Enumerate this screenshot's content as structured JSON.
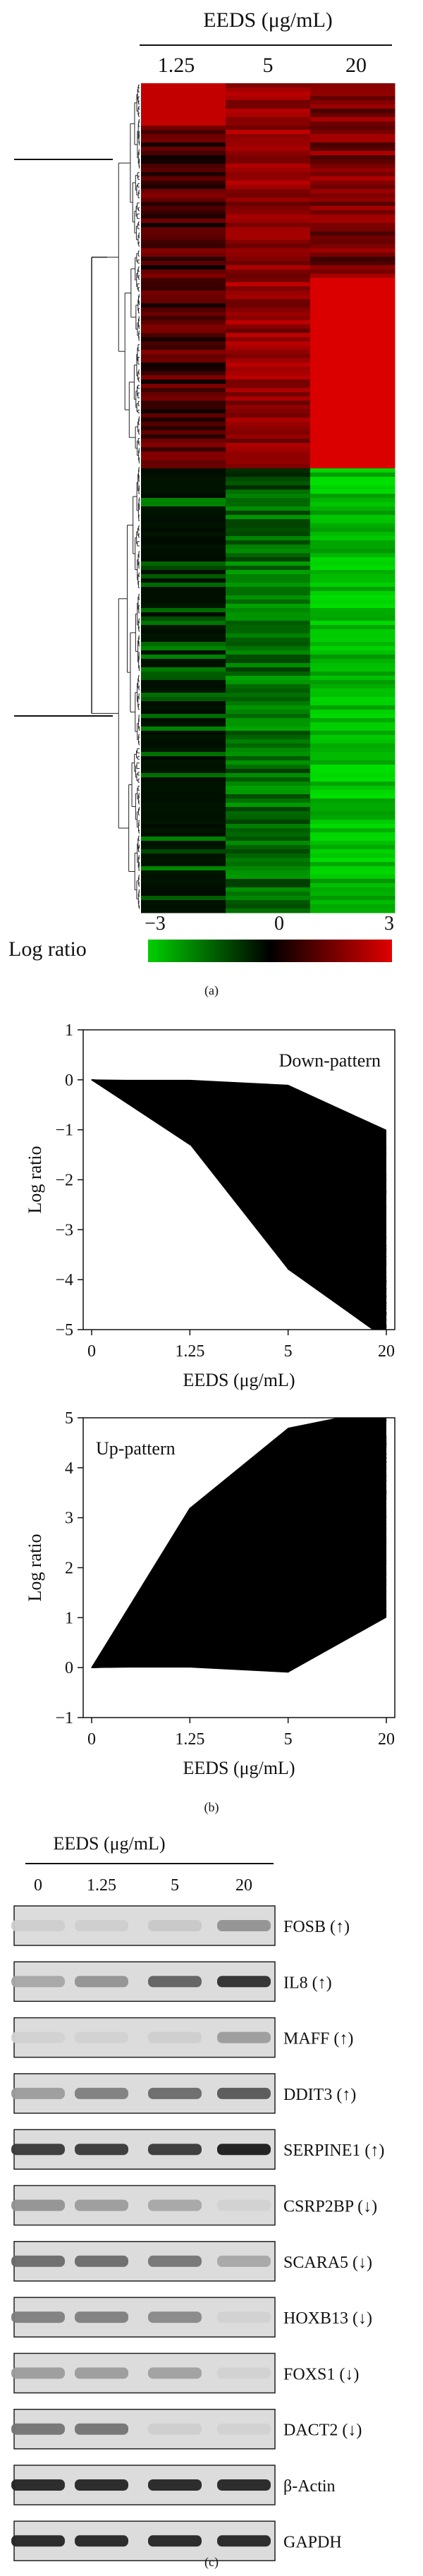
{
  "panel_a": {
    "title": "EEDS (μg/mL)",
    "columns": [
      "1.25",
      "5",
      "20"
    ],
    "scale_label": "Log ratio",
    "scale_ticks": [
      "-3",
      "0",
      "3"
    ],
    "scale_colors": {
      "low": "#00d000",
      "mid": "#000000",
      "high": "#e00000"
    },
    "caption": "(a)"
  },
  "chart_data": [
    {
      "type": "line",
      "title": "",
      "annotation": "Down-pattern",
      "xlabel": "EEDS (μg/mL)",
      "ylabel": "Log ratio",
      "x": [
        "0",
        "1.25",
        "5",
        "20"
      ],
      "ylim": [
        -5,
        1
      ],
      "yticks": [
        1,
        0,
        -1,
        -2,
        -3,
        -4,
        -5
      ],
      "grid": false,
      "series_envelope": {
        "upper": [
          0,
          0,
          -0.1,
          -1.0
        ],
        "lower": [
          0,
          -1.3,
          -3.8,
          -5.2
        ]
      }
    },
    {
      "type": "line",
      "title": "",
      "annotation": "Up-pattern",
      "xlabel": "EEDS (μg/mL)",
      "ylabel": "Log ratio",
      "x": [
        "0",
        "1.25",
        "5",
        "20"
      ],
      "ylim": [
        -1,
        5
      ],
      "yticks": [
        5,
        4,
        3,
        2,
        1,
        0,
        -1
      ],
      "grid": false,
      "series_envelope": {
        "upper": [
          0,
          3.2,
          4.8,
          5.2
        ],
        "lower": [
          0,
          0,
          -0.1,
          1.0
        ]
      }
    }
  ],
  "panel_b": {
    "caption": "(b)"
  },
  "panel_c": {
    "title": "EEDS (μg/mL)",
    "lanes": [
      "0",
      "1.25",
      "5",
      "20"
    ],
    "genes": [
      {
        "label": "FOSB (↑)",
        "intensities": [
          0.05,
          0.05,
          0.08,
          0.35
        ]
      },
      {
        "label": "IL8 (↑)",
        "intensities": [
          0.25,
          0.35,
          0.6,
          0.85
        ]
      },
      {
        "label": "MAFF (↑)",
        "intensities": [
          0.03,
          0.03,
          0.05,
          0.3
        ]
      },
      {
        "label": "DDIT3 (↑)",
        "intensities": [
          0.3,
          0.45,
          0.55,
          0.65
        ]
      },
      {
        "label": "SERPINE1 (↑)",
        "intensities": [
          0.8,
          0.8,
          0.8,
          0.95
        ]
      },
      {
        "label": "CSRP2BP (↓)",
        "intensities": [
          0.35,
          0.3,
          0.25,
          0.03
        ]
      },
      {
        "label": "SCARA5 (↓)",
        "intensities": [
          0.55,
          0.55,
          0.5,
          0.25
        ]
      },
      {
        "label": "HOXB13 (↓)",
        "intensities": [
          0.45,
          0.45,
          0.4,
          0.03
        ]
      },
      {
        "label": "FOXS1 (↓)",
        "intensities": [
          0.3,
          0.3,
          0.28,
          0.03
        ]
      },
      {
        "label": "DACT2 (↓)",
        "intensities": [
          0.5,
          0.5,
          0.05,
          0.03
        ]
      },
      {
        "label": "β-Actin",
        "intensities": [
          0.9,
          0.9,
          0.9,
          0.9
        ]
      },
      {
        "label": "GAPDH",
        "intensities": [
          0.9,
          0.9,
          0.9,
          0.9
        ]
      }
    ],
    "caption": "(c)"
  }
}
